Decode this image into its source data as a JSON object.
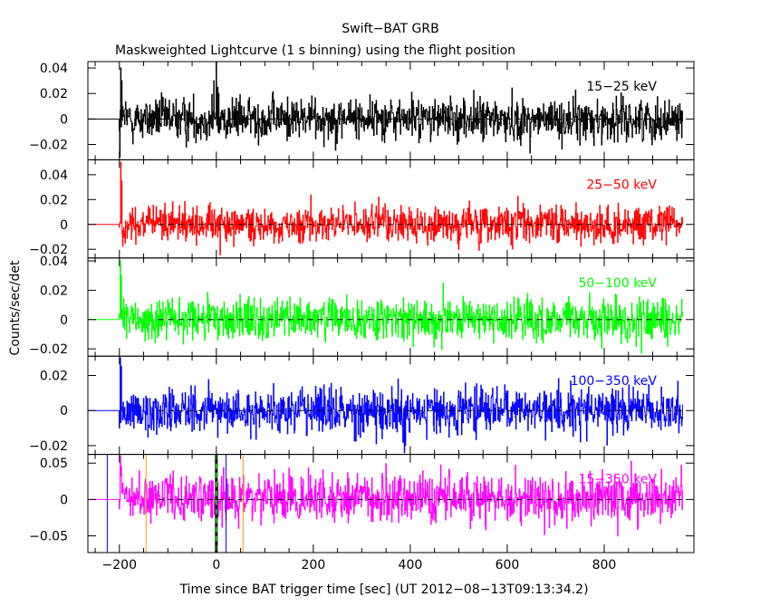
{
  "title": "Swift−BAT GRB",
  "subtitle": "Maskweighted Lightcurve (1 s binning) using the flight position",
  "ylabel": "Counts/sec/det",
  "xlabel": "Time since BAT trigger time [sec] (UT 2012−08−13T09:13:34.2)",
  "chart_data": {
    "type": "line",
    "title": "Swift−BAT GRB",
    "subtitle": "Maskweighted Lightcurve (1 s binning) using the flight position",
    "xlabel": "Time since BAT trigger time [sec] (UT 2012−08−13T09:13:34.2)",
    "ylabel": "Counts/sec/det",
    "xlim": [
      -265,
      985
    ],
    "x_ticks": [
      -200,
      0,
      200,
      400,
      600,
      800
    ],
    "x_tick_labels": [
      "−200",
      "0",
      "200",
      "400",
      "600",
      "800"
    ],
    "data_range_x": [
      -200,
      962
    ],
    "binning_s": 1,
    "grid": false,
    "panels": [
      {
        "name": "15−25 keV",
        "color": "#000000",
        "ylim": [
          -0.032,
          0.045
        ],
        "yticks": [
          -0.02,
          0,
          0.02,
          0.04
        ],
        "ytick_labels": [
          "−0.02",
          "0",
          "0.02",
          "0.04"
        ],
        "noise_sigma": 0.0085,
        "trend": [
          [
            -200,
            0.0
          ],
          [
            0,
            0.0
          ],
          [
            300,
            0.001
          ],
          [
            500,
            0.0
          ],
          [
            700,
            -0.001
          ],
          [
            962,
            0.0
          ]
        ],
        "features": [
          {
            "x": -199,
            "y": -0.03
          },
          {
            "x": -197,
            "y": 0.04
          },
          {
            "x": -195,
            "y": 0.03
          },
          {
            "x": -5,
            "y": 0.03
          },
          {
            "x": 0,
            "y": 0.045
          },
          {
            "x": 3,
            "y": 0.025
          },
          {
            "x": 5,
            "y": 0.02
          }
        ]
      },
      {
        "name": "25−50 keV",
        "color": "#ff0000",
        "ylim": [
          -0.027,
          0.052
        ],
        "yticks": [
          -0.02,
          0,
          0.02,
          0.04
        ],
        "ytick_labels": [
          "−0.02",
          "0",
          "0.02",
          "0.04"
        ],
        "noise_sigma": 0.0075,
        "trend": [
          [
            -200,
            0.0
          ],
          [
            962,
            0.0
          ]
        ],
        "features": [
          {
            "x": -197,
            "y": 0.05
          },
          {
            "x": -195,
            "y": 0.035
          }
        ]
      },
      {
        "name": "50−100 keV",
        "color": "#00ff00",
        "ylim": [
          -0.025,
          0.042
        ],
        "yticks": [
          -0.02,
          0,
          0.02,
          0.04
        ],
        "ytick_labels": [
          "−0.02",
          "0",
          "0.02",
          "0.04"
        ],
        "noise_sigma": 0.0075,
        "trend": [
          [
            -200,
            0.0
          ],
          [
            962,
            0.0
          ]
        ],
        "features": [
          {
            "x": -198,
            "y": 0.04
          },
          {
            "x": -196,
            "y": 0.03
          }
        ]
      },
      {
        "name": "100−350 keV",
        "color": "#0000ff",
        "ylim": [
          -0.025,
          0.031
        ],
        "yticks": [
          -0.02,
          0,
          0.02
        ],
        "ytick_labels": [
          "−0.02",
          "0",
          "0.02"
        ],
        "noise_sigma": 0.0065,
        "trend": [
          [
            -200,
            0.0
          ],
          [
            962,
            0.0
          ]
        ],
        "features": [
          {
            "x": -198,
            "y": 0.03
          },
          {
            "x": -196,
            "y": 0.025
          },
          {
            "x": 385,
            "y": -0.018
          },
          {
            "x": 388,
            "y": -0.024
          },
          {
            "x": 390,
            "y": -0.02
          }
        ]
      },
      {
        "name": "15−350 keV",
        "color": "#ff00ff",
        "ylim": [
          -0.073,
          0.062
        ],
        "yticks": [
          -0.05,
          0,
          0.05
        ],
        "ytick_labels": [
          "−0.05",
          "0",
          "0.05"
        ],
        "noise_sigma": 0.017,
        "trend": [
          [
            -200,
            0.0
          ],
          [
            962,
            0.0
          ]
        ],
        "features": [
          {
            "x": -198,
            "y": 0.06
          },
          {
            "x": -196,
            "y": 0.045
          }
        ],
        "markers": [
          {
            "x": -225,
            "color": "#0000ff",
            "style": "solid"
          },
          {
            "x": -145,
            "color": "#ff9900",
            "style": "solid"
          },
          {
            "x": 0,
            "color": "#00cc00",
            "style": "dashed-thick"
          },
          {
            "x": 20,
            "color": "#0000ff",
            "style": "solid"
          },
          {
            "x": 55,
            "color": "#ff9900",
            "style": "solid"
          }
        ]
      }
    ]
  }
}
